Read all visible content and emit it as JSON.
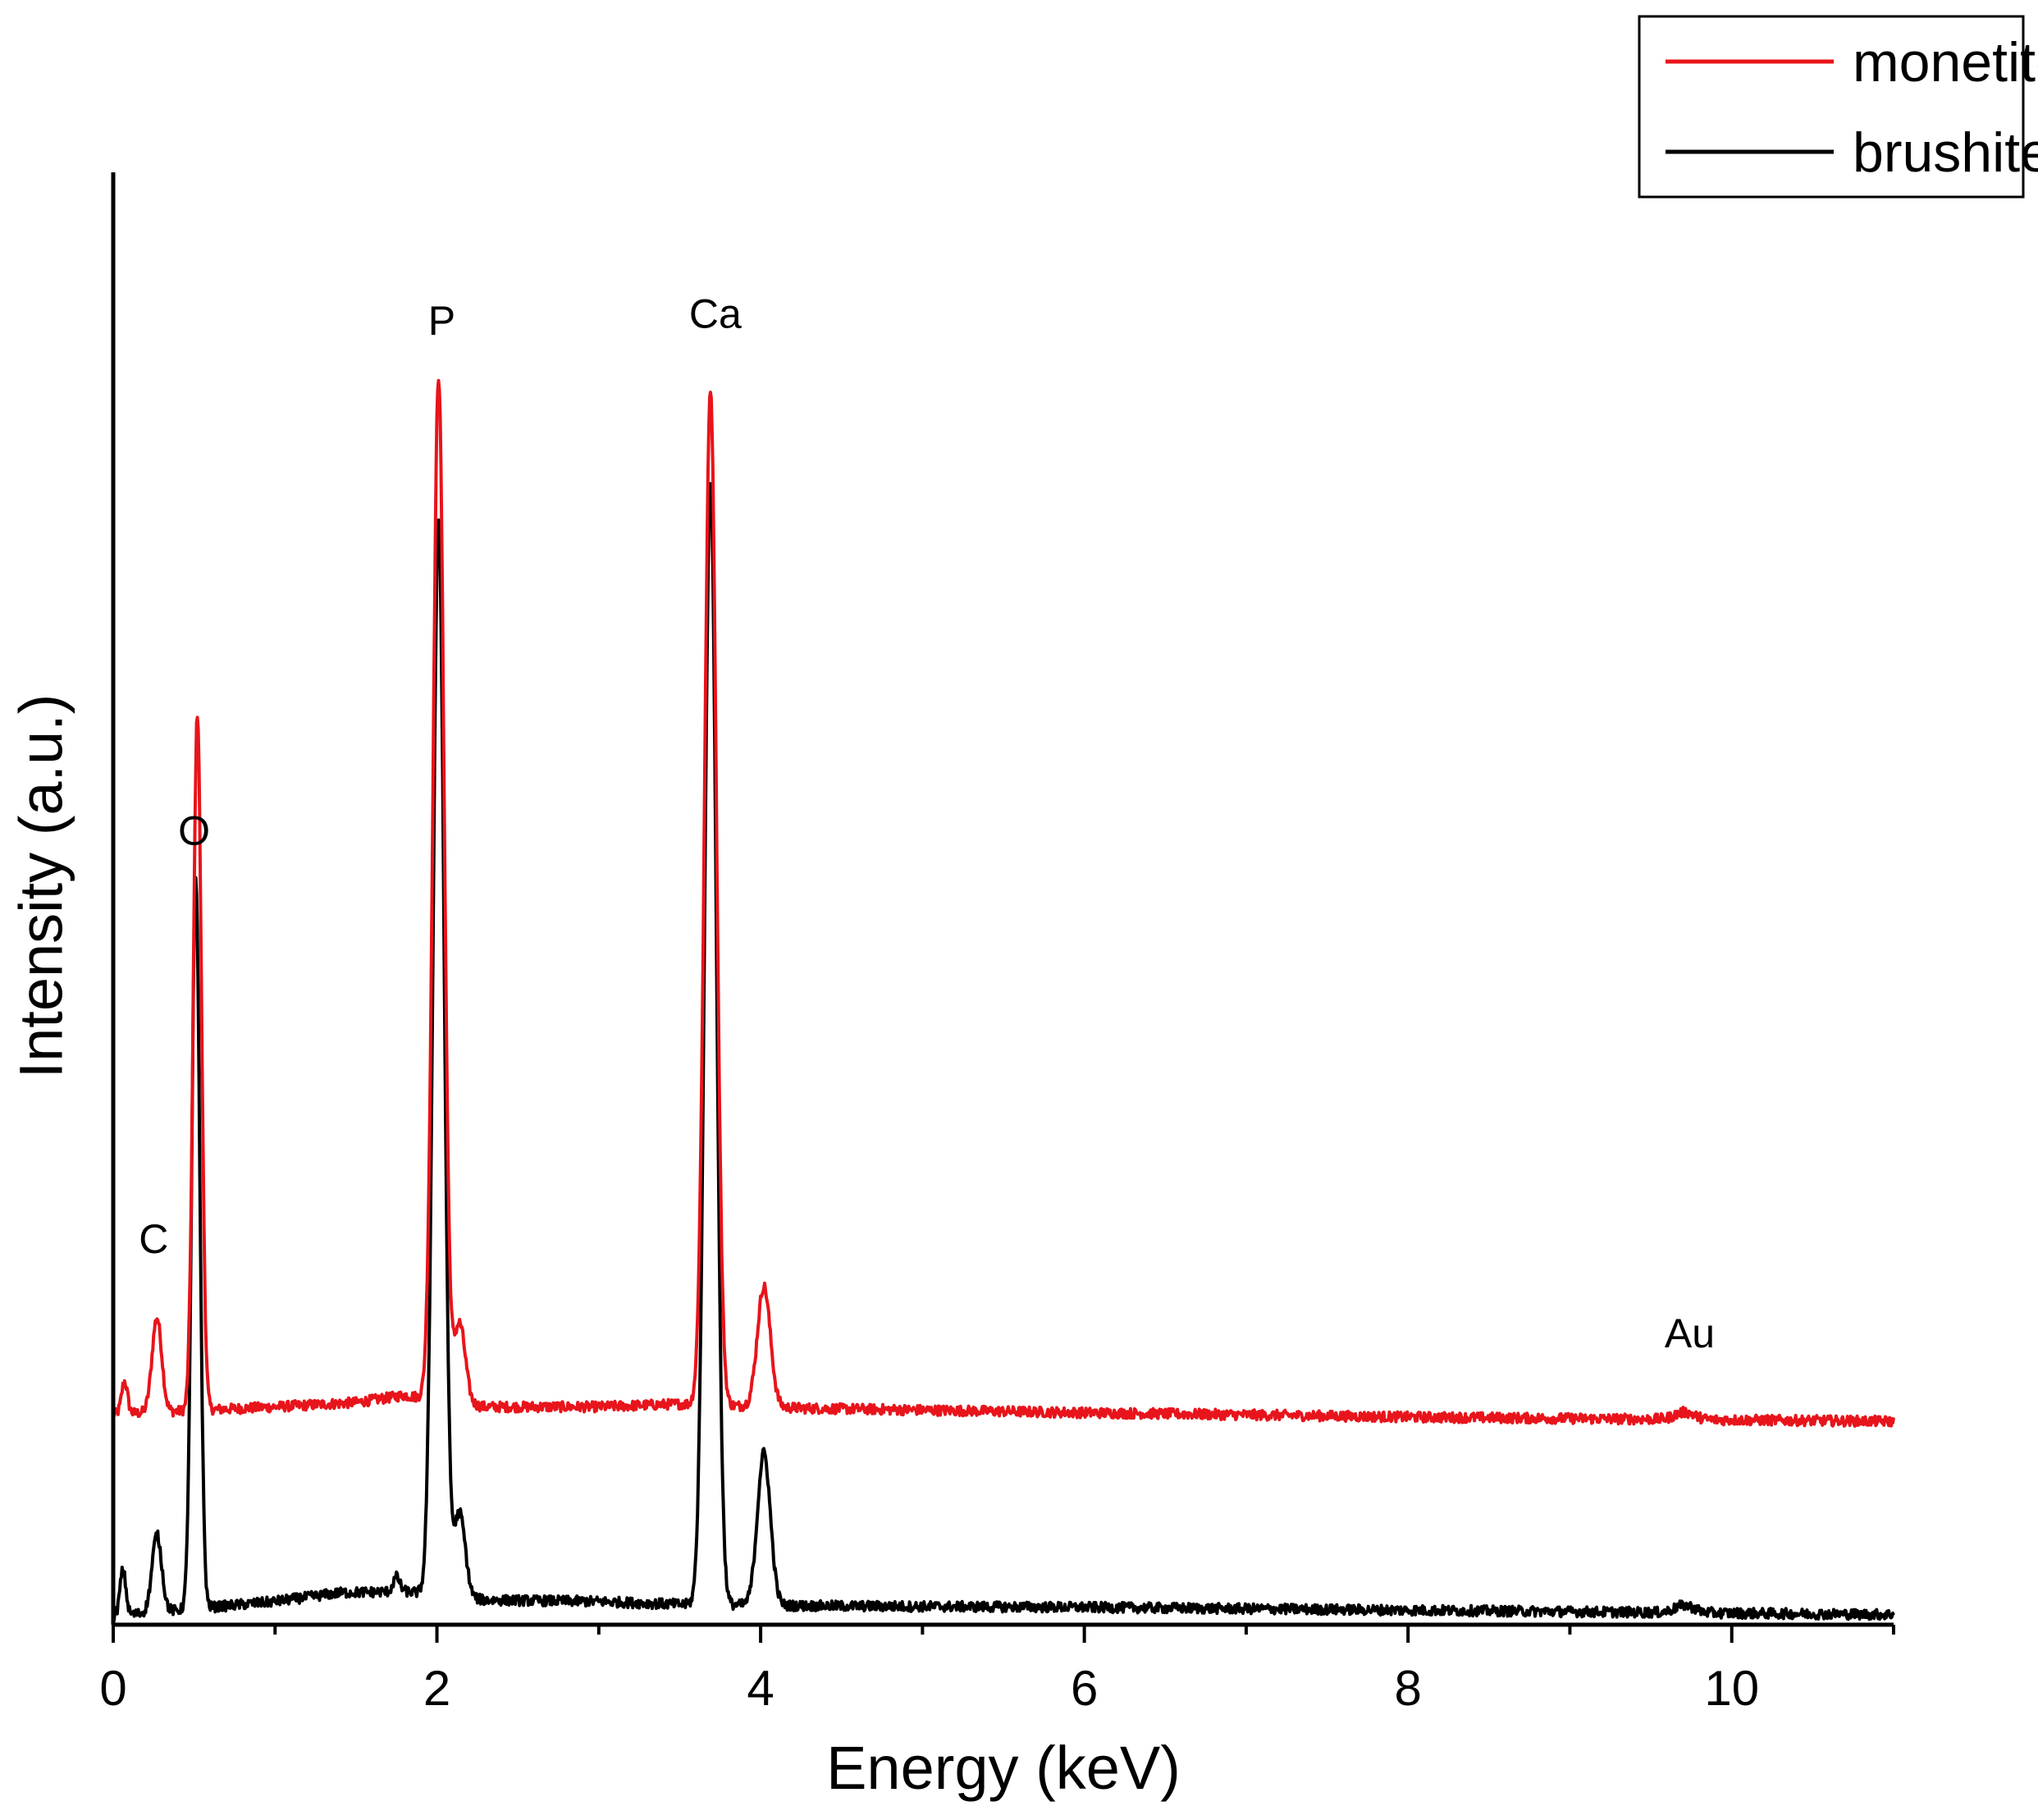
{
  "chart_data": {
    "type": "line",
    "title": "",
    "xlabel": "Energy (keV)",
    "ylabel": "Intensity (a.u.)",
    "xlim": [
      0,
      11
    ],
    "ylim": [
      0,
      100
    ],
    "x_ticks": [
      0,
      2,
      4,
      6,
      8,
      10
    ],
    "x_minor_ticks": [
      1,
      3,
      5,
      7,
      9,
      11
    ],
    "y_ticks_shown": false,
    "grid": false,
    "legend_position": "top-right",
    "series": [
      {
        "name": "monetite",
        "color": "#e8141b",
        "baseline": [
          [
            0,
            14.5
          ],
          [
            1.0,
            15.0
          ],
          [
            1.5,
            15.3
          ],
          [
            1.8,
            15.8
          ],
          [
            2.3,
            15.0
          ],
          [
            3.0,
            15.0
          ],
          [
            3.5,
            15.2
          ],
          [
            4.3,
            14.9
          ],
          [
            6.0,
            14.6
          ],
          [
            8.0,
            14.3
          ],
          [
            11.0,
            14.0
          ]
        ],
        "peaks": [
          {
            "center": 0.07,
            "height": 2.2,
            "width": 0.018
          },
          {
            "center": 0.27,
            "height": 6.5,
            "width": 0.03
          },
          {
            "center": 0.52,
            "height": 48.0,
            "width": 0.025
          },
          {
            "center": 2.01,
            "height": 70.5,
            "width": 0.034
          },
          {
            "center": 2.14,
            "height": 5.5,
            "width": 0.035
          },
          {
            "center": 3.69,
            "height": 70.0,
            "width": 0.036
          },
          {
            "center": 4.02,
            "height": 8.3,
            "width": 0.04
          },
          {
            "center": 9.71,
            "height": 0.5,
            "width": 0.06
          }
        ]
      },
      {
        "name": "brushite",
        "color": "#000000",
        "baseline": [
          [
            0,
            0.6
          ],
          [
            0.6,
            1.2
          ],
          [
            1.0,
            1.6
          ],
          [
            1.4,
            2.2
          ],
          [
            1.8,
            2.3
          ],
          [
            2.3,
            1.7
          ],
          [
            3.0,
            1.6
          ],
          [
            3.5,
            1.4
          ],
          [
            4.3,
            1.3
          ],
          [
            6.0,
            1.2
          ],
          [
            8.0,
            1.0
          ],
          [
            11.0,
            0.7
          ]
        ],
        "peaks": [
          {
            "center": 0.06,
            "height": 3.1,
            "width": 0.018
          },
          {
            "center": 0.27,
            "height": 5.3,
            "width": 0.03
          },
          {
            "center": 0.51,
            "height": 50.0,
            "width": 0.025
          },
          {
            "center": 1.75,
            "height": 1.0,
            "width": 0.02
          },
          {
            "center": 2.01,
            "height": 74.0,
            "width": 0.034
          },
          {
            "center": 2.14,
            "height": 5.8,
            "width": 0.035
          },
          {
            "center": 3.69,
            "height": 77.5,
            "width": 0.036
          },
          {
            "center": 4.02,
            "height": 10.5,
            "width": 0.04
          },
          {
            "center": 9.71,
            "height": 0.5,
            "width": 0.06
          }
        ]
      }
    ],
    "annotations": [
      {
        "text": "C",
        "x": 0.25,
        "y": 25.6
      },
      {
        "text": "O",
        "x": 0.5,
        "y": 53.7
      },
      {
        "text": "P",
        "x": 2.03,
        "y": 88.8
      },
      {
        "text": "Ca",
        "x": 3.72,
        "y": 89.3
      },
      {
        "text": "Au",
        "x": 9.74,
        "y": 19.1
      }
    ]
  }
}
